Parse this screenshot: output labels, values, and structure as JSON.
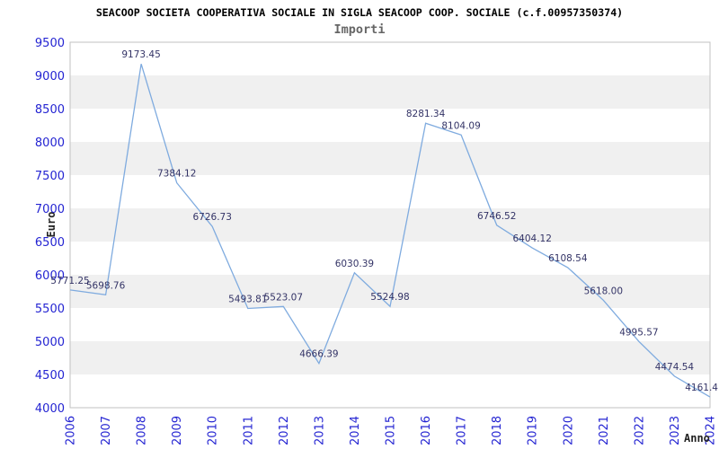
{
  "chart_data": {
    "type": "line",
    "title": "SEACOOP SOCIETA COOPERATIVA SOCIALE IN SIGLA SEACOOP COOP. SOCIALE (c.f.00957350374)",
    "subtitle": "Importi",
    "xlabel": "Anno",
    "ylabel": "Euro",
    "categories": [
      "2006",
      "2007",
      "2008",
      "2009",
      "2010",
      "2011",
      "2012",
      "2013",
      "2014",
      "2015",
      "2016",
      "2017",
      "2018",
      "2019",
      "2020",
      "2021",
      "2022",
      "2023",
      "2024"
    ],
    "values": [
      5771.25,
      5698.76,
      9173.45,
      7384.12,
      6726.73,
      5493.81,
      5523.07,
      4666.39,
      6030.39,
      5524.98,
      8281.34,
      8104.09,
      6746.52,
      6404.12,
      6108.54,
      5618.0,
      4995.57,
      4474.54,
      4161.4
    ],
    "point_labels": [
      "5771.25",
      "5698.76",
      "9173.45",
      "7384.12",
      "6726.73",
      "5493.81",
      "5523.07",
      "4666.39",
      "6030.39",
      "5524.98",
      "8281.34",
      "8104.09",
      "6746.52",
      "6404.12",
      "6108.54",
      "5618.00",
      "4995.57",
      "4474.54",
      "4161.4"
    ],
    "ylim": [
      4000,
      9500
    ],
    "ytick_step": 500,
    "grid": "alternating-horizontal-bands",
    "legend": "none",
    "tick_label_rotation_x": -90,
    "colors": {
      "line": "#7fabdf",
      "tick_label": "#2424d2",
      "point_label": "#333366",
      "band": "#f0f0f0",
      "plot_border": "#c2c2c2",
      "title": "#000000",
      "subtitle": "#666666",
      "axis_label": "#222222"
    }
  }
}
